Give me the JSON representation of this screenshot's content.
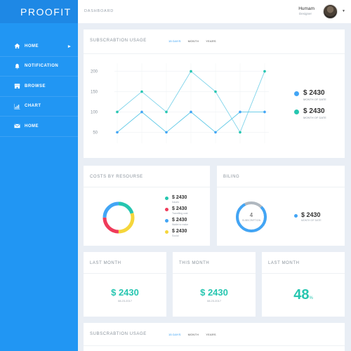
{
  "app": {
    "logo": "PROOFIT",
    "breadcrumb": "DASHBOARD"
  },
  "user": {
    "name": "Humam",
    "role": "Designer"
  },
  "sidebar": {
    "items": [
      {
        "label": "HOME",
        "icon": "home-icon"
      },
      {
        "label": "NOTIFICATION",
        "icon": "bell-icon"
      },
      {
        "label": "BROWSE",
        "icon": "store-icon"
      },
      {
        "label": "CHART",
        "icon": "bar-chart-icon"
      },
      {
        "label": "HOME",
        "icon": "mail-icon"
      }
    ]
  },
  "colors": {
    "primary": "#2196f3",
    "teal": "#26c6b0",
    "lightblue": "#5cc8e6",
    "red": "#ef3b5a",
    "yellow": "#f5d63b",
    "blue": "#42a5f5",
    "grey": "#b0b8c0"
  },
  "usage": {
    "title": "SUBSCRABTION USAGE",
    "tabs": [
      "15 DAYS",
      "MONTH",
      "YEARS"
    ],
    "legend": [
      {
        "value": "$ 2430",
        "label": "MONTH OF DATE"
      },
      {
        "value": "$ 2430",
        "label": "MONTH OF DATE"
      }
    ]
  },
  "chart_data": {
    "type": "line",
    "categories": [
      "SUN",
      "TUE",
      "WED",
      "THU",
      "FRI",
      "SAT",
      "MON"
    ],
    "yticks": [
      50,
      100,
      150,
      200
    ],
    "ylim": [
      30,
      220
    ],
    "series": [
      {
        "values": [
          100,
          150,
          100,
          200,
          150,
          50,
          200
        ]
      },
      {
        "values": [
          50,
          100,
          50,
          100,
          50,
          100,
          100
        ]
      }
    ]
  },
  "costs": {
    "title": "COSTS BY RESOURSE",
    "items": [
      {
        "value": "$ 2430",
        "label": "Issues"
      },
      {
        "value": "$ 2430",
        "label": "Travelling cost"
      },
      {
        "value": "$ 2430",
        "label": "Wallet to make"
      },
      {
        "value": "$ 2430",
        "label": "Social"
      }
    ]
  },
  "billing": {
    "title": "BILING",
    "count": "4",
    "count_label": "SUBSCRIPTION",
    "value": "$ 2430",
    "label": "MONTH OF DATE"
  },
  "stats": [
    {
      "title": "LAST MONTH",
      "value": "$ 2430",
      "date": "08.23.2017"
    },
    {
      "title": "THIS MONTH",
      "value": "$ 2430",
      "date": "08.23.2017"
    },
    {
      "title": "LAST MONTH",
      "pct": "48",
      "pct_unit": "%"
    }
  ],
  "usage2": {
    "title": "SUBSCRABTION USAGE",
    "tabs": [
      "15 DAYS",
      "MONTH",
      "YEARS"
    ]
  }
}
